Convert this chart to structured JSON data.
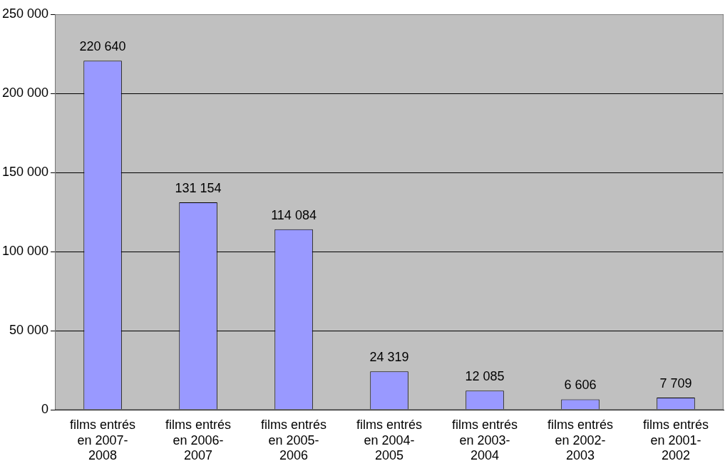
{
  "chart_data": {
    "type": "bar",
    "categories": [
      "films entrés en 2007-2008",
      "films entrés en 2006-2007",
      "films entrés en 2005-2006",
      "films entrés en 2004-2005",
      "films entrés en 2003-2004",
      "films entrés en 2002-2003",
      "films entrés en 2001-2002"
    ],
    "values": [
      220640,
      131154,
      114084,
      24319,
      12085,
      6606,
      7709
    ],
    "value_labels": [
      "220 640",
      "131 154",
      "114 084",
      "24 319",
      "12 085",
      "6 606",
      "7 709"
    ],
    "color": "#9999ff",
    "ylim": [
      0,
      250000
    ],
    "yticks": [
      {
        "value": 0,
        "label": "0"
      },
      {
        "value": 50000,
        "label": "50 000"
      },
      {
        "value": 100000,
        "label": "100 000"
      },
      {
        "value": 150000,
        "label": "150 000"
      },
      {
        "value": 200000,
        "label": "200 000"
      },
      {
        "value": 250000,
        "label": "250 000"
      }
    ],
    "grid": "y",
    "legend": false
  }
}
